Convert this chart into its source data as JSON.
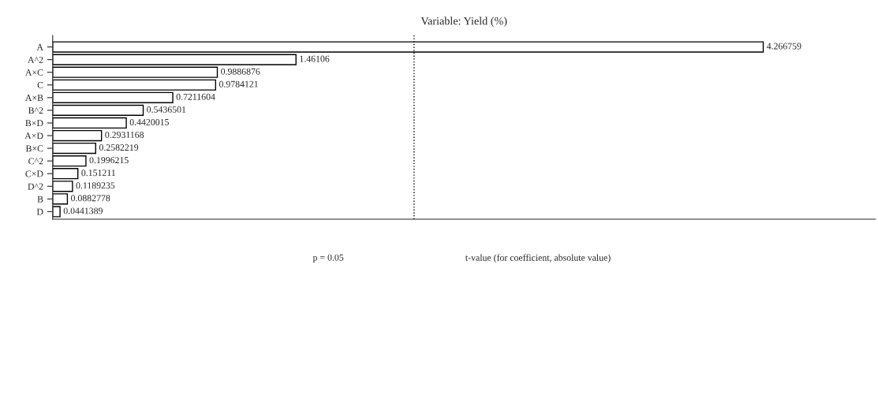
{
  "chart_data": {
    "type": "bar",
    "orientation": "horizontal",
    "title": "Variable: Yield (%)",
    "xlabel": "t-value (for coefficient, absolute value)",
    "categories": [
      "A",
      "A^2",
      "A×C",
      "C",
      "A×B",
      "B^2",
      "B×D",
      "A×D",
      "B×C",
      "C^2",
      "C×D",
      "D^2",
      "B",
      "D"
    ],
    "values": [
      4.266759,
      1.46106,
      0.9886876,
      0.9784121,
      0.7211604,
      0.5436501,
      0.4420015,
      0.2931168,
      0.2582219,
      0.1996215,
      0.151211,
      0.1189235,
      0.0882778,
      0.0441389
    ],
    "color": "#ffffff",
    "data_labels": true,
    "xlim": [
      0,
      4.94
    ],
    "tick_labels": "y",
    "grid": false,
    "legend": false,
    "annotations": [
      "p = 0.05"
    ],
    "ref_lines": [
      {
        "axis": "x",
        "value": 2.17,
        "line_style": "dotted",
        "color": "#000000"
      }
    ]
  }
}
